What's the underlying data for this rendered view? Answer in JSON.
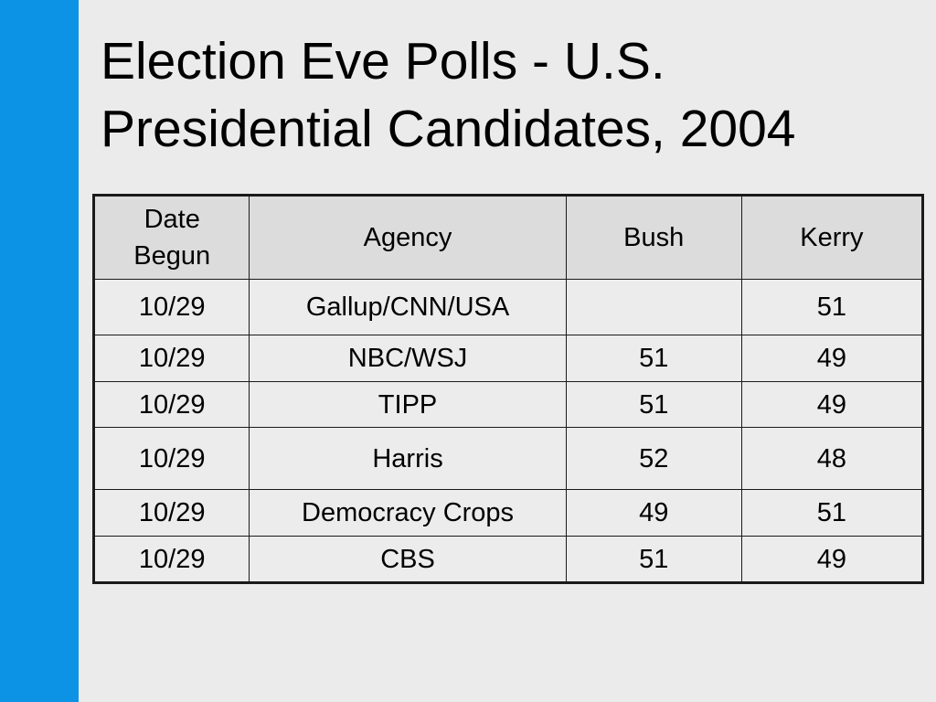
{
  "slide": {
    "title_line1": "Election Eve Polls - U.S.",
    "title_line2": "Presidential Candidates, 2004",
    "accent_color": "#0d93e6"
  },
  "table": {
    "headers": {
      "date_line1": "Date",
      "date_line2": "Begun",
      "agency": "Agency",
      "bush": "Bush",
      "kerry": "Kerry"
    },
    "rows": [
      {
        "date": "10/29",
        "agency": "Gallup/CNN/USA",
        "bush": "",
        "kerry": "51"
      },
      {
        "date": "10/29",
        "agency": "NBC/WSJ",
        "bush": "51",
        "kerry": "49"
      },
      {
        "date": "10/29",
        "agency": "TIPP",
        "bush": "51",
        "kerry": "49"
      },
      {
        "date": "10/29",
        "agency": "Harris",
        "bush": "52",
        "kerry": "48"
      },
      {
        "date": "10/29",
        "agency": "Democracy Crops",
        "bush": "49",
        "kerry": "51"
      },
      {
        "date": "10/29",
        "agency": "CBS",
        "bush": "51",
        "kerry": "49"
      }
    ]
  }
}
